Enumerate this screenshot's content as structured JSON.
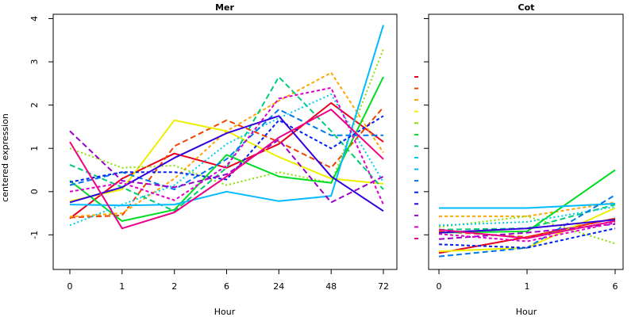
{
  "chart_data": {
    "type": "line",
    "ylabel": "centered expression",
    "ylim": [
      -1.8,
      4.1
    ],
    "yticks": [
      -1,
      0,
      1,
      2,
      3,
      4
    ],
    "grid": false,
    "legend": "none",
    "panels": [
      {
        "title": "Mer",
        "xlabel": "Hour",
        "categories": [
          "0",
          "1",
          "2",
          "6",
          "24",
          "48",
          "72"
        ],
        "series": [
          {
            "color": "#e8001c",
            "dash": "solid",
            "values": [
              -0.62,
              0.3,
              0.88,
              0.55,
              1.1,
              2.05,
              1.15
            ]
          },
          {
            "color": "#ee4400",
            "dash": "long",
            "values": [
              -0.6,
              -0.55,
              1.05,
              1.65,
              1.15,
              0.55,
              1.95
            ]
          },
          {
            "color": "#ffa500",
            "dash": "short",
            "values": [
              -0.58,
              -0.5,
              0.3,
              1.4,
              2.1,
              2.75,
              0.9
            ]
          },
          {
            "color": "#eeee00",
            "dash": "solid",
            "values": [
              -0.22,
              0.05,
              1.65,
              1.4,
              0.8,
              0.3,
              0.18
            ]
          },
          {
            "color": "#88e000",
            "dash": "dotted",
            "values": [
              1.0,
              0.55,
              0.6,
              0.15,
              0.45,
              0.2,
              3.3
            ]
          },
          {
            "color": "#00dd22",
            "dash": "solid",
            "values": [
              0.25,
              -0.68,
              -0.42,
              0.85,
              0.35,
              0.2,
              2.65
            ]
          },
          {
            "color": "#00cc77",
            "dash": "long",
            "values": [
              0.62,
              0.1,
              -0.45,
              0.55,
              2.65,
              1.4,
              0.05
            ]
          },
          {
            "color": "#00ccee",
            "dash": "dotted",
            "values": [
              -0.78,
              -0.3,
              0.15,
              1.1,
              1.7,
              2.25,
              0.22
            ]
          },
          {
            "color": "#00bbff",
            "dash": "solid",
            "values": [
              -0.3,
              -0.32,
              -0.3,
              0.0,
              -0.22,
              -0.1,
              3.85
            ]
          },
          {
            "color": "#0077ee",
            "dash": "long",
            "values": [
              0.15,
              0.45,
              0.05,
              0.75,
              1.9,
              1.3,
              1.3
            ]
          },
          {
            "color": "#0022ee",
            "dash": "short",
            "values": [
              0.22,
              0.45,
              0.45,
              0.28,
              1.65,
              1.0,
              1.75
            ]
          },
          {
            "color": "#3300dd",
            "dash": "solid",
            "values": [
              -0.25,
              0.1,
              0.78,
              1.35,
              1.75,
              0.35,
              -0.45
            ]
          },
          {
            "color": "#9900cc",
            "dash": "long",
            "values": [
              1.4,
              0.25,
              0.1,
              0.4,
              1.2,
              -0.25,
              0.35
            ]
          },
          {
            "color": "#dd00cc",
            "dash": "short",
            "values": [
              0.0,
              0.2,
              -0.2,
              0.6,
              2.15,
              2.4,
              -0.3
            ]
          },
          {
            "color": "#ee0088",
            "dash": "solid",
            "values": [
              1.15,
              -0.85,
              -0.48,
              0.35,
              1.25,
              1.9,
              0.75
            ]
          }
        ]
      },
      {
        "title": "Cot",
        "xlabel": "Hour",
        "categories": [
          "0",
          "1",
          "6"
        ],
        "series": [
          {
            "color": "#e8001c",
            "dash": "solid",
            "values": [
              -1.42,
              -1.05,
              -0.62
            ]
          },
          {
            "color": "#ee4400",
            "dash": "long",
            "values": [
              -0.92,
              -1.05,
              -0.62
            ]
          },
          {
            "color": "#ffa500",
            "dash": "short",
            "values": [
              -0.57,
              -0.57,
              -0.25
            ]
          },
          {
            "color": "#eeee00",
            "dash": "solid",
            "values": [
              -1.38,
              -1.3,
              -0.38
            ]
          },
          {
            "color": "#88e000",
            "dash": "dotted",
            "values": [
              -0.82,
              -0.57,
              -1.2
            ]
          },
          {
            "color": "#00dd22",
            "dash": "solid",
            "values": [
              -0.95,
              -0.92,
              0.5
            ]
          },
          {
            "color": "#00cc77",
            "dash": "long",
            "values": [
              -0.88,
              -0.85,
              -0.3
            ]
          },
          {
            "color": "#00ccee",
            "dash": "dotted",
            "values": [
              -0.78,
              -0.7,
              -0.35
            ]
          },
          {
            "color": "#00bbff",
            "dash": "solid",
            "values": [
              -0.38,
              -0.38,
              -0.28
            ]
          },
          {
            "color": "#0077ee",
            "dash": "long",
            "values": [
              -1.5,
              -1.3,
              -0.08
            ]
          },
          {
            "color": "#0022ee",
            "dash": "short",
            "values": [
              -1.22,
              -1.3,
              -0.85
            ]
          },
          {
            "color": "#3300dd",
            "dash": "solid",
            "values": [
              -0.95,
              -0.85,
              -0.65
            ]
          },
          {
            "color": "#9900cc",
            "dash": "long",
            "values": [
              -1.1,
              -0.95,
              -0.75
            ]
          },
          {
            "color": "#dd00cc",
            "dash": "short",
            "values": [
              -0.98,
              -1.15,
              -0.72
            ]
          },
          {
            "color": "#ee0088",
            "dash": "solid",
            "values": [
              -0.88,
              -1.08,
              -0.68
            ]
          }
        ]
      }
    ]
  }
}
